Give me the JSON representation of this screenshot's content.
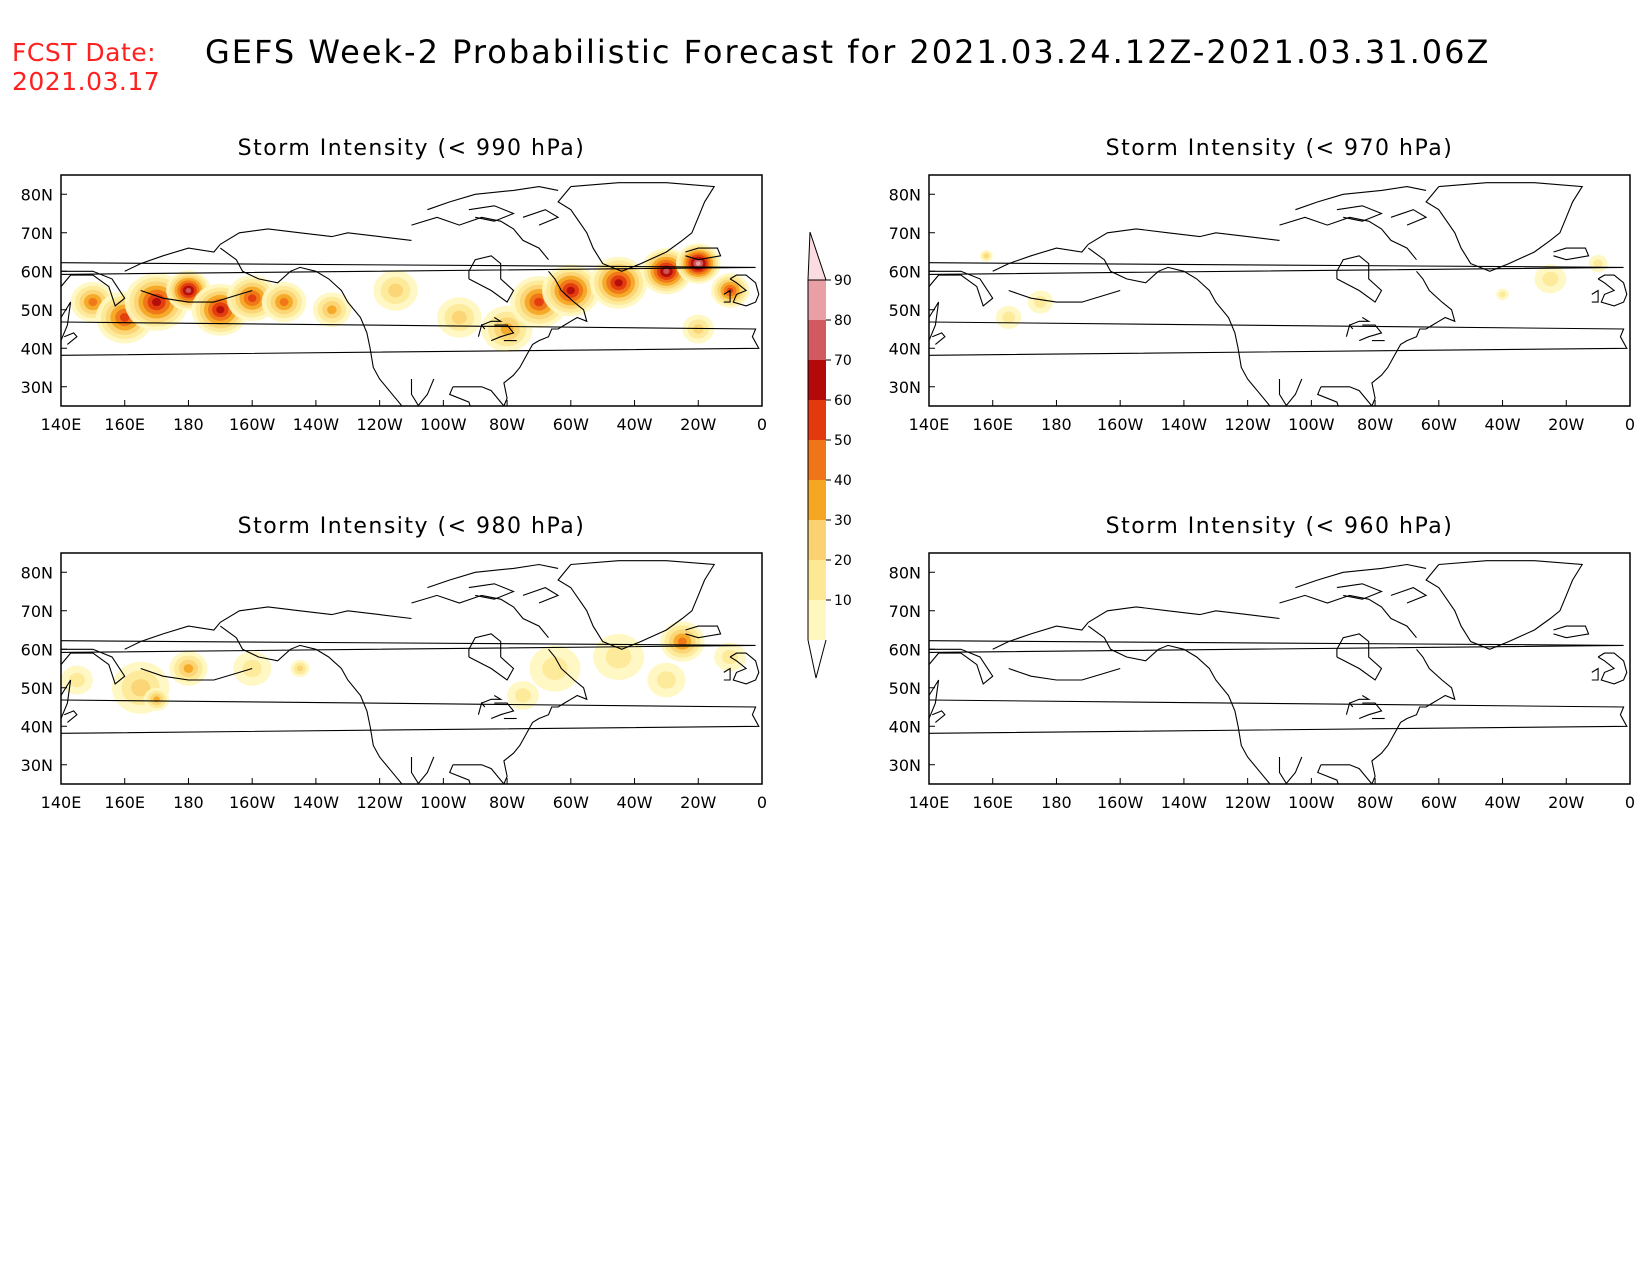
{
  "header": {
    "fcst_label": "FCST Date:",
    "fcst_date": "2021.03.17",
    "title": "GEFS Week-2 Probabilistic Forecast for 2021.03.24.12Z-2021.03.31.06Z"
  },
  "axes": {
    "lon_ticks": [
      "140E",
      "160E",
      "180",
      "160W",
      "140W",
      "120W",
      "100W",
      "80W",
      "60W",
      "40W",
      "20W",
      "0"
    ],
    "lat_ticks": [
      "80N",
      "70N",
      "60N",
      "50N",
      "40N",
      "30N"
    ]
  },
  "colorbar": {
    "levels": [
      "10",
      "20",
      "30",
      "40",
      "50",
      "60",
      "70",
      "80",
      "90"
    ],
    "colors": [
      "#fff7c0",
      "#fde896",
      "#fbd273",
      "#f5a623",
      "#f07418",
      "#e23a0c",
      "#b20a0a",
      "#d05a60",
      "#e8a0a5",
      "#fbdce0"
    ]
  },
  "panels": [
    {
      "title": "Storm Intensity (< 990 hPa)",
      "blobs": [
        {
          "lon": 150,
          "lat": 52,
          "r": 7,
          "level": 4
        },
        {
          "lon": 160,
          "lat": 48,
          "r": 9,
          "level": 5
        },
        {
          "lon": 170,
          "lat": 52,
          "r": 10,
          "level": 6
        },
        {
          "lon": 180,
          "lat": 55,
          "r": 7,
          "level": 7
        },
        {
          "lon": -170,
          "lat": 50,
          "r": 9,
          "level": 6
        },
        {
          "lon": -160,
          "lat": 53,
          "r": 8,
          "level": 5
        },
        {
          "lon": -150,
          "lat": 52,
          "r": 7,
          "level": 4
        },
        {
          "lon": -135,
          "lat": 50,
          "r": 6,
          "level": 3
        },
        {
          "lon": -115,
          "lat": 55,
          "r": 7,
          "level": 2
        },
        {
          "lon": -95,
          "lat": 48,
          "r": 7,
          "level": 2
        },
        {
          "lon": -80,
          "lat": 45,
          "r": 8,
          "level": 3
        },
        {
          "lon": -70,
          "lat": 52,
          "r": 9,
          "level": 5
        },
        {
          "lon": -60,
          "lat": 55,
          "r": 9,
          "level": 6
        },
        {
          "lon": -45,
          "lat": 57,
          "r": 9,
          "level": 6
        },
        {
          "lon": -30,
          "lat": 60,
          "r": 8,
          "level": 7
        },
        {
          "lon": -20,
          "lat": 62,
          "r": 7,
          "level": 8
        },
        {
          "lon": -10,
          "lat": 55,
          "r": 6,
          "level": 5
        },
        {
          "lon": -20,
          "lat": 45,
          "r": 5,
          "level": 2
        }
      ]
    },
    {
      "title": "Storm Intensity (< 970 hPa)",
      "blobs": [
        {
          "lon": 165,
          "lat": 48,
          "r": 4,
          "level": 1
        },
        {
          "lon": 175,
          "lat": 52,
          "r": 4,
          "level": 1
        },
        {
          "lon": 158,
          "lat": 64,
          "r": 2,
          "level": 2
        },
        {
          "lon": -25,
          "lat": 58,
          "r": 5,
          "level": 1
        },
        {
          "lon": -10,
          "lat": 62,
          "r": 3,
          "level": 1
        },
        {
          "lon": -40,
          "lat": 54,
          "r": 2,
          "level": 1
        }
      ]
    },
    {
      "title": "Storm Intensity (< 980 hPa)",
      "blobs": [
        {
          "lon": 145,
          "lat": 52,
          "r": 5,
          "level": 1
        },
        {
          "lon": 165,
          "lat": 50,
          "r": 9,
          "level": 2
        },
        {
          "lon": 180,
          "lat": 55,
          "r": 6,
          "level": 3
        },
        {
          "lon": 170,
          "lat": 47,
          "r": 4,
          "level": 3
        },
        {
          "lon": -160,
          "lat": 55,
          "r": 6,
          "level": 1
        },
        {
          "lon": -145,
          "lat": 55,
          "r": 3,
          "level": 2
        },
        {
          "lon": -65,
          "lat": 55,
          "r": 8,
          "level": 1
        },
        {
          "lon": -75,
          "lat": 48,
          "r": 5,
          "level": 1
        },
        {
          "lon": -45,
          "lat": 58,
          "r": 8,
          "level": 1
        },
        {
          "lon": -25,
          "lat": 62,
          "r": 7,
          "level": 4
        },
        {
          "lon": -30,
          "lat": 52,
          "r": 6,
          "level": 1
        },
        {
          "lon": -10,
          "lat": 58,
          "r": 5,
          "level": 1
        }
      ]
    },
    {
      "title": "Storm Intensity (< 960 hPa)",
      "blobs": []
    }
  ]
}
